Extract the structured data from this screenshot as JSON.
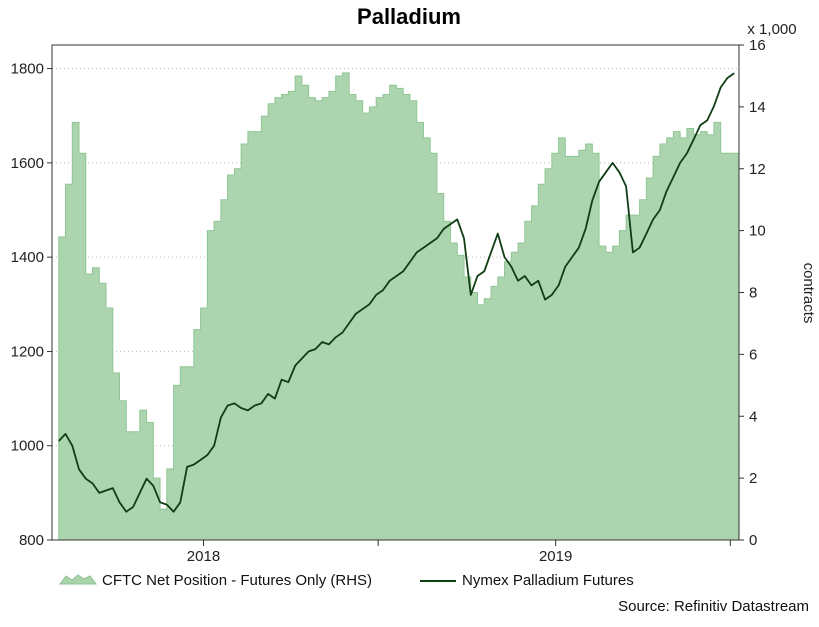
{
  "chart_data": {
    "type": "line",
    "title": "Palladium",
    "source": "Source: Refinitiv Datastream",
    "x_ticks": [
      "2018",
      "2019"
    ],
    "left_axis": {
      "ticks": [
        "800",
        "1000",
        "1200",
        "1400",
        "1600",
        "1800"
      ],
      "ylim": [
        800,
        1850
      ]
    },
    "right_axis": {
      "ticks": [
        "0",
        "2",
        "4",
        "6",
        "8",
        "10",
        "12",
        "14",
        "16"
      ],
      "ylim": [
        0,
        16
      ],
      "unit": "x 1,000",
      "label": "contracts"
    },
    "grid": "horizontal dotted",
    "legend_placement": "bottom",
    "series": [
      {
        "name": "CFTC Net Position - Futures Only (RHS)",
        "type": "area",
        "axis": "right",
        "color": "#8fc694",
        "x": [
          "2017-08-04",
          "2017-08-11",
          "2017-08-18",
          "2017-08-25",
          "2017-09-01",
          "2017-09-08",
          "2017-09-15",
          "2017-09-22",
          "2017-09-29",
          "2017-10-06",
          "2017-10-13",
          "2017-10-20",
          "2017-10-27",
          "2017-11-03",
          "2017-11-10",
          "2017-11-17",
          "2017-11-24",
          "2017-12-01",
          "2017-12-08",
          "2017-12-15",
          "2017-12-22",
          "2017-12-29",
          "2018-01-05",
          "2018-01-12",
          "2018-01-19",
          "2018-01-26",
          "2018-02-02",
          "2018-02-09",
          "2018-02-16",
          "2018-02-23",
          "2018-03-02",
          "2018-03-09",
          "2018-03-16",
          "2018-03-23",
          "2018-03-30",
          "2018-04-06",
          "2018-04-13",
          "2018-04-20",
          "2018-04-27",
          "2018-05-04",
          "2018-05-11",
          "2018-05-18",
          "2018-05-25",
          "2018-06-01",
          "2018-06-08",
          "2018-06-15",
          "2018-06-22",
          "2018-06-29",
          "2018-07-06",
          "2018-07-13",
          "2018-07-20",
          "2018-07-27",
          "2018-08-03",
          "2018-08-10",
          "2018-08-17",
          "2018-08-24",
          "2018-08-31",
          "2018-09-07",
          "2018-09-14",
          "2018-09-21",
          "2018-09-28",
          "2018-10-05",
          "2018-10-12",
          "2018-10-19",
          "2018-10-26",
          "2018-11-02",
          "2018-11-09",
          "2018-11-16",
          "2018-11-23",
          "2018-11-30",
          "2018-12-07",
          "2018-12-14",
          "2018-12-21",
          "2018-12-28",
          "2019-01-04",
          "2019-01-11",
          "2019-01-18",
          "2019-01-25",
          "2019-02-01",
          "2019-02-08",
          "2019-02-15",
          "2019-02-22",
          "2019-03-01",
          "2019-03-08",
          "2019-03-15",
          "2019-03-22",
          "2019-03-29",
          "2019-04-05",
          "2019-04-12",
          "2019-04-19",
          "2019-04-26",
          "2019-05-03",
          "2019-05-10",
          "2019-05-17",
          "2019-05-24",
          "2019-05-31",
          "2019-06-07",
          "2019-06-14",
          "2019-06-21",
          "2019-06-28",
          "2019-07-05"
        ],
        "values": [
          9.8,
          11.5,
          13.5,
          12.5,
          8.6,
          8.8,
          8.3,
          7.5,
          5.4,
          4.5,
          3.5,
          3.5,
          4.2,
          3.8,
          2.0,
          1.0,
          2.3,
          5.0,
          5.6,
          5.6,
          6.8,
          7.5,
          10.0,
          10.3,
          11.0,
          11.8,
          12.0,
          12.8,
          13.2,
          13.2,
          13.7,
          14.1,
          14.3,
          14.4,
          14.5,
          15.0,
          14.7,
          14.3,
          14.2,
          14.3,
          14.5,
          15.0,
          15.1,
          14.4,
          14.2,
          13.8,
          14.0,
          14.3,
          14.4,
          14.7,
          14.6,
          14.4,
          14.2,
          13.5,
          13.0,
          12.5,
          11.2,
          10.3,
          9.6,
          9.2,
          8.5,
          8.0,
          7.6,
          7.8,
          8.2,
          8.5,
          9.0,
          9.3,
          9.6,
          10.3,
          10.8,
          11.5,
          12.0,
          12.5,
          13.0,
          12.4,
          12.4,
          12.6,
          12.8,
          12.5,
          9.5,
          9.3,
          9.5,
          10.0,
          10.5,
          10.5,
          11.0,
          11.7,
          12.4,
          12.8,
          13.0,
          13.2,
          13.0,
          13.3,
          13.1,
          13.2,
          13.1,
          13.5,
          12.5,
          12.5,
          12.5
        ]
      },
      {
        "name": "Nymex Palladium Futures",
        "type": "line",
        "axis": "left",
        "color": "#0f3d14",
        "x": [
          "2017-08-04",
          "2017-08-11",
          "2017-08-18",
          "2017-08-25",
          "2017-09-01",
          "2017-09-08",
          "2017-09-15",
          "2017-09-22",
          "2017-09-29",
          "2017-10-06",
          "2017-10-13",
          "2017-10-20",
          "2017-10-27",
          "2017-11-03",
          "2017-11-10",
          "2017-11-17",
          "2017-11-24",
          "2017-12-01",
          "2017-12-08",
          "2017-12-15",
          "2017-12-22",
          "2017-12-29",
          "2018-01-05",
          "2018-01-12",
          "2018-01-19",
          "2018-01-26",
          "2018-02-02",
          "2018-02-09",
          "2018-02-16",
          "2018-02-23",
          "2018-03-02",
          "2018-03-09",
          "2018-03-16",
          "2018-03-23",
          "2018-03-30",
          "2018-04-06",
          "2018-04-13",
          "2018-04-20",
          "2018-04-27",
          "2018-05-04",
          "2018-05-11",
          "2018-05-18",
          "2018-05-25",
          "2018-06-01",
          "2018-06-08",
          "2018-06-15",
          "2018-06-22",
          "2018-06-29",
          "2018-07-06",
          "2018-07-13",
          "2018-07-20",
          "2018-07-27",
          "2018-08-03",
          "2018-08-10",
          "2018-08-17",
          "2018-08-24",
          "2018-08-31",
          "2018-09-07",
          "2018-09-14",
          "2018-09-21",
          "2018-09-28",
          "2018-10-05",
          "2018-10-12",
          "2018-10-19",
          "2018-10-26",
          "2018-11-02",
          "2018-11-09",
          "2018-11-16",
          "2018-11-23",
          "2018-11-30",
          "2018-12-07",
          "2018-12-14",
          "2018-12-21",
          "2018-12-28",
          "2019-01-04",
          "2019-01-11",
          "2019-01-18",
          "2019-01-25",
          "2019-02-01",
          "2019-02-08",
          "2019-02-15",
          "2019-02-22",
          "2019-03-01",
          "2019-03-08",
          "2019-03-15",
          "2019-03-22",
          "2019-03-29",
          "2019-04-05",
          "2019-04-12",
          "2019-04-19",
          "2019-04-26",
          "2019-05-03",
          "2019-05-10",
          "2019-05-17",
          "2019-05-24",
          "2019-05-31",
          "2019-06-07",
          "2019-06-14",
          "2019-06-21",
          "2019-06-28",
          "2019-07-05"
        ],
        "values": [
          1010,
          1025,
          1000,
          950,
          930,
          920,
          900,
          905,
          910,
          880,
          860,
          870,
          900,
          930,
          915,
          880,
          875,
          860,
          880,
          955,
          960,
          970,
          980,
          1000,
          1060,
          1085,
          1090,
          1080,
          1075,
          1085,
          1090,
          1110,
          1100,
          1140,
          1135,
          1170,
          1185,
          1200,
          1205,
          1220,
          1215,
          1230,
          1240,
          1260,
          1280,
          1290,
          1300,
          1320,
          1330,
          1350,
          1360,
          1370,
          1390,
          1410,
          1420,
          1430,
          1440,
          1460,
          1470,
          1480,
          1440,
          1320,
          1360,
          1370,
          1410,
          1450,
          1400,
          1380,
          1350,
          1360,
          1340,
          1350,
          1310,
          1320,
          1340,
          1380,
          1400,
          1420,
          1460,
          1520,
          1560,
          1580,
          1600,
          1580,
          1550,
          1410,
          1420,
          1450,
          1480,
          1500,
          1540,
          1570,
          1600,
          1620,
          1650,
          1680,
          1690,
          1720,
          1760,
          1780,
          1790
        ]
      }
    ]
  }
}
